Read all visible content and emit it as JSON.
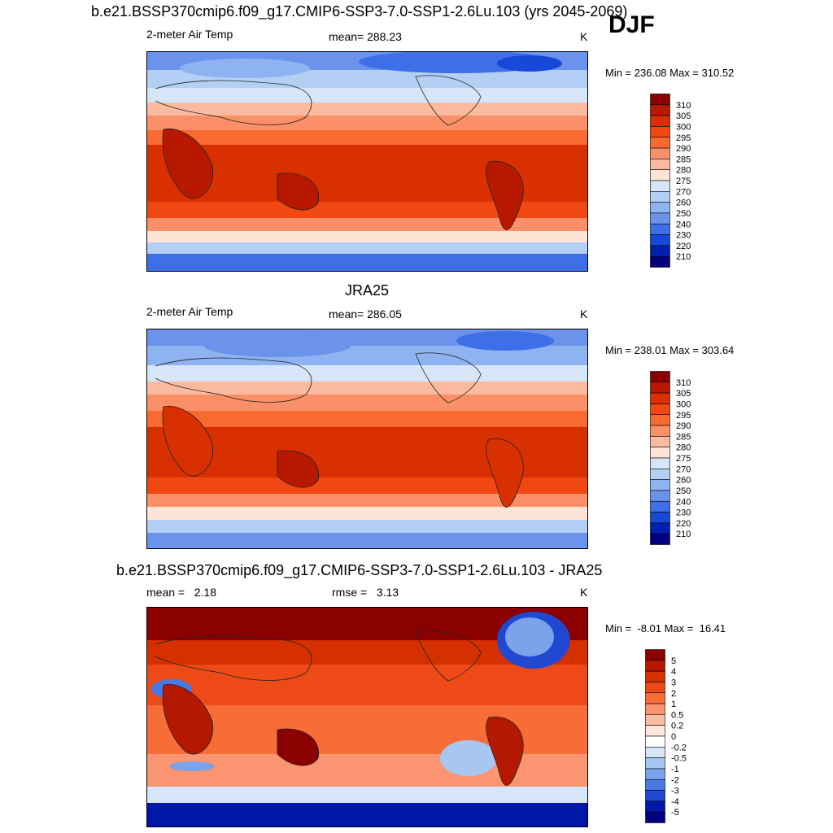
{
  "figure": {
    "title": "b.e21.BSSP370cmip6.f09_g17.CMIP6-SSP3-7.0-SSP1-2.6Lu.103 (yrs 2045-2069)",
    "season": "DJF"
  },
  "panels": [
    {
      "id": "model",
      "variable": "2-meter Air Temp",
      "mean_text": "mean= 288.23",
      "units": "K",
      "minmax_text": "Min = 236.08 Max = 310.52",
      "colorbar": {
        "labels": [
          "310",
          "305",
          "300",
          "295",
          "290",
          "285",
          "280",
          "275",
          "270",
          "260",
          "250",
          "240",
          "230",
          "220",
          "210"
        ],
        "colors": [
          "#8b0000",
          "#b81800",
          "#d83000",
          "#f04810",
          "#f86a30",
          "#fb9068",
          "#fcbba0",
          "#fde4d4",
          "#d6e6f8",
          "#b4cff4",
          "#8fb2f0",
          "#6b93ec",
          "#3e6fe8",
          "#1848d8",
          "#0020b0",
          "#000080"
        ]
      }
    },
    {
      "id": "obs",
      "title": "JRA25",
      "variable": "2-meter Air Temp",
      "mean_text": "mean= 286.05",
      "units": "K",
      "minmax_text": "Min = 238.01 Max = 303.64",
      "colorbar": {
        "labels": [
          "310",
          "305",
          "300",
          "295",
          "290",
          "285",
          "280",
          "275",
          "270",
          "260",
          "250",
          "240",
          "230",
          "220",
          "210"
        ],
        "colors": [
          "#8b0000",
          "#b81800",
          "#d83000",
          "#f04810",
          "#f86a30",
          "#fb9068",
          "#fcbba0",
          "#fde4d4",
          "#d6e6f8",
          "#b4cff4",
          "#8fb2f0",
          "#6b93ec",
          "#3e6fe8",
          "#1848d8",
          "#0020b0",
          "#000080"
        ]
      }
    },
    {
      "id": "diff",
      "title": "b.e21.BSSP370cmip6.f09_g17.CMIP6-SSP3-7.0-SSP1-2.6Lu.103 - JRA25",
      "mean_text": "mean =   2.18",
      "rmse_text": "rmse =   3.13",
      "units": "K",
      "minmax_text": "Min =  -8.01 Max =  16.41",
      "colorbar": {
        "labels": [
          "5",
          "4",
          "3",
          "2",
          "1",
          "0.5",
          "0.2",
          "0",
          "-0.2",
          "-0.5",
          "-1",
          "-2",
          "-3",
          "-4",
          "-5"
        ],
        "colors": [
          "#8b0000",
          "#b41800",
          "#d43000",
          "#ee4a18",
          "#f86c38",
          "#fb9470",
          "#fcbea4",
          "#fde6da",
          "#ffffff",
          "#d6e6f8",
          "#a8c6f2",
          "#7aa3ec",
          "#4a78e4",
          "#2048d0",
          "#0018a8",
          "#000080"
        ]
      }
    }
  ]
}
